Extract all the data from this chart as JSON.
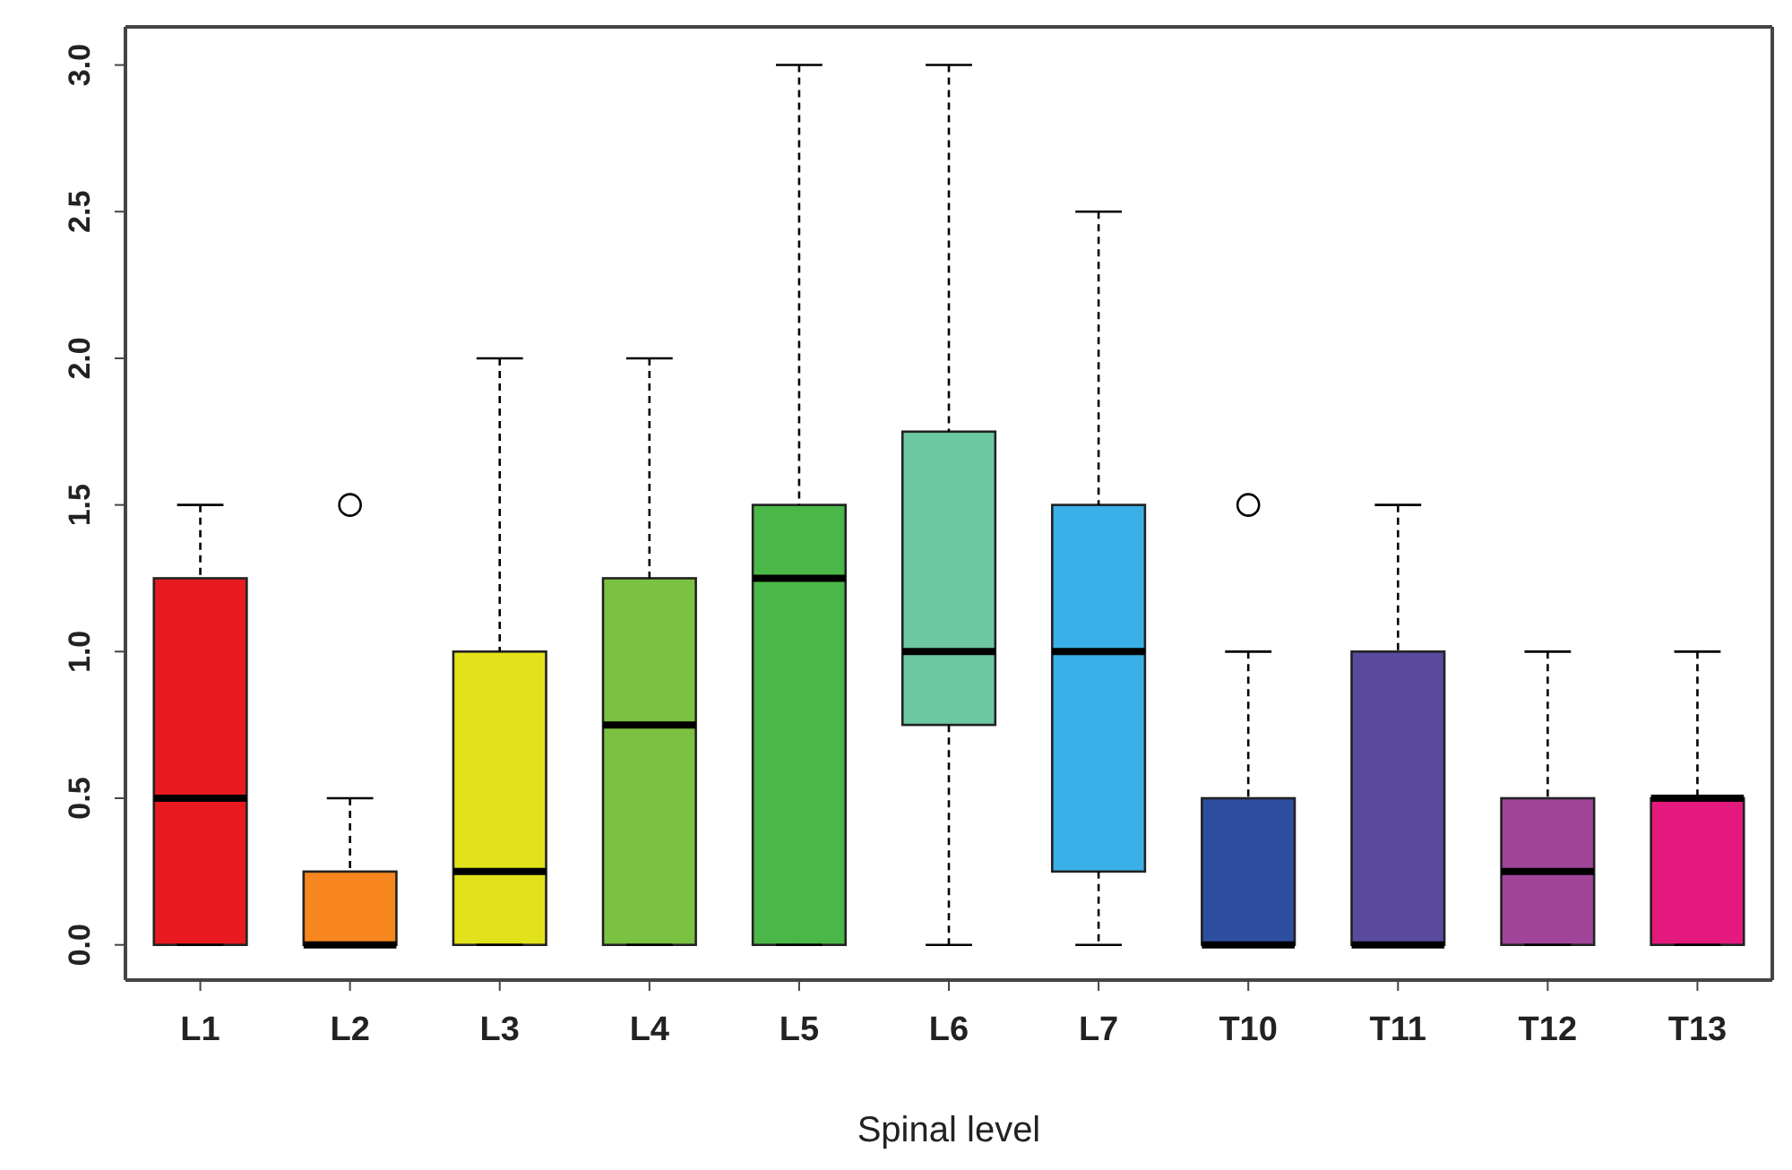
{
  "chart_data": {
    "type": "box",
    "xlabel": "Spinal level",
    "categories": [
      "L1",
      "L2",
      "L3",
      "L4",
      "L5",
      "L6",
      "L7",
      "T10",
      "T11",
      "T12",
      "T13"
    ],
    "colors": [
      "#e8191f",
      "#f7861e",
      "#e2e21c",
      "#7cc242",
      "#4cb749",
      "#6cc8a0",
      "#3bb0e8",
      "#2e4fa0",
      "#5a4a9e",
      "#a0459a",
      "#e4197e"
    ],
    "boxes": [
      {
        "low": 0,
        "q1": 0,
        "median": 0.5,
        "q3": 1.25,
        "high": 1.5
      },
      {
        "low": 0,
        "q1": 0,
        "median": 0,
        "q3": 0.25,
        "high": 0.5,
        "outliers": [
          1.5
        ]
      },
      {
        "low": 0,
        "q1": 0,
        "median": 0.25,
        "q3": 1.0,
        "high": 2.0
      },
      {
        "low": 0,
        "q1": 0,
        "median": 0.75,
        "q3": 1.25,
        "high": 2.0
      },
      {
        "low": 0,
        "q1": 0,
        "median": 1.25,
        "q3": 1.5,
        "high": 3.0
      },
      {
        "low": 0,
        "q1": 0.75,
        "median": 1.0,
        "q3": 1.75,
        "high": 3.0
      },
      {
        "low": 0,
        "q1": 0.25,
        "median": 1.0,
        "q3": 1.5,
        "high": 2.5
      },
      {
        "low": 0,
        "q1": 0,
        "median": 0,
        "q3": 0.5,
        "high": 1.0,
        "outliers": [
          1.5
        ]
      },
      {
        "low": 0,
        "q1": 0,
        "median": 0,
        "q3": 1.0,
        "high": 1.5
      },
      {
        "low": 0,
        "q1": 0,
        "median": 0.25,
        "q3": 0.5,
        "high": 1.0
      },
      {
        "low": 0,
        "q1": 0,
        "median": 0.5,
        "q3": 0.5,
        "high": 1.0
      }
    ],
    "ylim": [
      -0.12,
      3.13
    ],
    "yticks": [
      {
        "value": 0,
        "label": "0.0"
      },
      {
        "value": 0.5,
        "label": "0.5"
      },
      {
        "value": 1,
        "label": "1.0"
      },
      {
        "value": 1.5,
        "label": "1.5"
      },
      {
        "value": 2,
        "label": "2.0"
      },
      {
        "value": 2.5,
        "label": "2.5"
      },
      {
        "value": 3,
        "label": "3.0"
      }
    ]
  }
}
